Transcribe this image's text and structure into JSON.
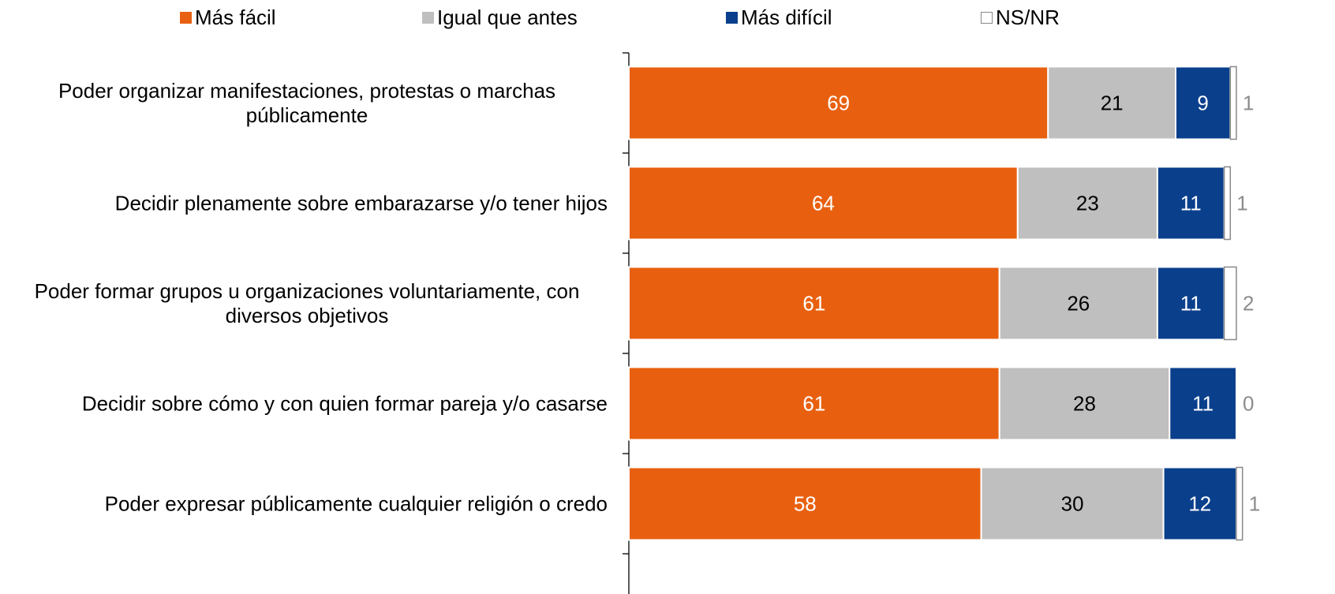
{
  "chart_data": {
    "type": "stacked_barh",
    "categories": [
      "Poder organizar manifestaciones, protestas o marchas públicamente",
      "Decidir plenamente sobre embarazarse y/o tener hijos",
      "Poder formar grupos u organizaciones voluntariamente, con diversos objetivos",
      "Decidir sobre cómo y con quien formar pareja y/o casarse",
      "Poder expresar públicamente cualquier religión o credo"
    ],
    "series": [
      {
        "name": "Más fácil",
        "color": "#e8600f",
        "values": [
          69,
          64,
          61,
          61,
          58
        ]
      },
      {
        "name": "Igual que antes",
        "color": "#bfbfbf",
        "values": [
          21,
          23,
          26,
          28,
          30
        ]
      },
      {
        "name": "Más difícil",
        "color": "#0a3f8c",
        "values": [
          9,
          11,
          11,
          11,
          12
        ]
      },
      {
        "name": "NS/NR",
        "color": "#ffffff",
        "values": [
          1,
          1,
          2,
          0,
          1
        ]
      }
    ],
    "xlim": [
      0,
      100
    ]
  }
}
